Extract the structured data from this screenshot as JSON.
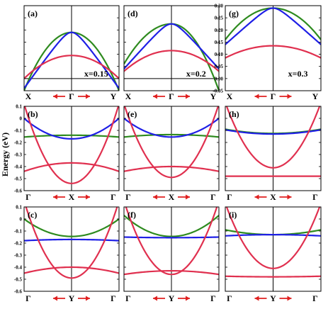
{
  "colors": {
    "band_green": "#2e8b1f",
    "band_blue": "#1f1fe6",
    "band_red": "#e0304f",
    "arrow_red": "#e02020",
    "arrow_pink": "#f07a7a",
    "axis": "#000000"
  },
  "ylabel": "Energy (eV)",
  "chart_data": [
    {
      "type": "line",
      "label": "(a)",
      "annotation": "x=0.15",
      "kpoints": [
        "X",
        "Γ",
        "Y"
      ],
      "ylim": [
        -0.05,
        0.3
      ],
      "ytick_labels": [],
      "has_zero_line": true,
      "x": [
        -1,
        0,
        1
      ],
      "series": [
        {
          "color": "green",
          "values": [
            -0.05,
            0.19,
            -0.05
          ],
          "shape": "parabola"
        },
        {
          "color": "blue",
          "values": [
            -0.04,
            0.19,
            -0.04
          ],
          "shape": "cone"
        },
        {
          "color": "red",
          "values": [
            0.0,
            0.095,
            0.0
          ],
          "shape": "parabola"
        }
      ]
    },
    {
      "type": "line",
      "label": "(d)",
      "annotation": "x=0.2",
      "kpoints": [
        "X",
        "Γ",
        "Y"
      ],
      "ylim": [
        -0.05,
        0.3
      ],
      "ytick_labels": [],
      "has_zero_line": true,
      "x": [
        -1,
        0,
        1
      ],
      "series": [
        {
          "color": "green",
          "values": [
            0.06,
            0.225,
            -0.05
          ],
          "shape": "parabola"
        },
        {
          "color": "blue",
          "values": [
            0.04,
            0.225,
            0.04
          ],
          "shape": "cone"
        },
        {
          "color": "red",
          "values": [
            0.03,
            0.115,
            0.03
          ],
          "shape": "parabola"
        }
      ]
    },
    {
      "type": "line",
      "label": "(g)",
      "annotation": "x=0.3",
      "kpoints": [
        "X",
        "Γ",
        "Y"
      ],
      "ylim": [
        -0.05,
        0.3
      ],
      "ytick_labels": [
        "0.30",
        "0.25",
        "0.20",
        "0.15",
        "0.10",
        "0.05",
        "0.00",
        "-0.05"
      ],
      "has_zero_line": false,
      "x": [
        -1,
        0,
        1
      ],
      "series": [
        {
          "color": "green",
          "values": [
            0.16,
            0.29,
            0.16
          ],
          "shape": "parabola"
        },
        {
          "color": "blue",
          "values": [
            0.14,
            0.29,
            0.14
          ],
          "shape": "cone"
        },
        {
          "color": "red",
          "values": [
            0.085,
            0.135,
            0.085
          ],
          "shape": "parabola"
        }
      ]
    },
    {
      "type": "line",
      "label": "(b)",
      "kpoints": [
        "Γ",
        "X",
        "Γ"
      ],
      "ylim": [
        -0.6,
        0.1
      ],
      "ytick_labels": [
        "0.1",
        "0",
        "-0.1",
        "-0.2",
        "-0.3",
        "-0.4",
        "-0.5",
        "-0.6"
      ],
      "has_zero_line": false,
      "x": [
        -1,
        0,
        1
      ],
      "series": [
        {
          "color": "green",
          "values": [
            -0.155,
            -0.14,
            -0.155
          ],
          "shape": "parabola"
        },
        {
          "color": "blue",
          "values": [
            0.0,
            -0.17,
            0.0
          ],
          "shape": "parabola"
        },
        {
          "color": "red",
          "values": [
            0.12,
            -0.54,
            0.12
          ],
          "shape": "parabola"
        },
        {
          "color": "red",
          "values": [
            -0.44,
            -0.37,
            -0.44
          ],
          "shape": "parabola"
        }
      ]
    },
    {
      "type": "line",
      "label": "(e)",
      "kpoints": [
        "Γ",
        "X",
        "Γ"
      ],
      "ylim": [
        -0.6,
        0.1
      ],
      "ytick_labels": [],
      "has_zero_line": false,
      "x": [
        -1,
        0,
        1
      ],
      "series": [
        {
          "color": "green",
          "values": [
            -0.155,
            -0.135,
            -0.155
          ],
          "shape": "parabola"
        },
        {
          "color": "blue",
          "values": [
            0.0,
            -0.155,
            0.0
          ],
          "shape": "parabola"
        },
        {
          "color": "red",
          "values": [
            0.12,
            -0.49,
            0.12
          ],
          "shape": "parabola"
        },
        {
          "color": "red",
          "values": [
            -0.44,
            -0.4,
            -0.44
          ],
          "shape": "parabola"
        }
      ]
    },
    {
      "type": "line",
      "label": "(h)",
      "kpoints": [
        "Γ",
        "X",
        "Γ"
      ],
      "ylim": [
        -0.6,
        0.1
      ],
      "ytick_labels": [],
      "has_zero_line": false,
      "x": [
        -1,
        0,
        1
      ],
      "series": [
        {
          "color": "green",
          "values": [
            -0.09,
            -0.125,
            -0.09
          ],
          "shape": "parabola"
        },
        {
          "color": "blue",
          "values": [
            -0.095,
            -0.13,
            -0.095
          ],
          "shape": "parabola"
        },
        {
          "color": "red",
          "values": [
            0.13,
            -0.41,
            0.13
          ],
          "shape": "parabola"
        },
        {
          "color": "red",
          "values": [
            -0.48,
            -0.48,
            -0.48
          ],
          "shape": "parabola"
        }
      ]
    },
    {
      "type": "line",
      "label": "(c)",
      "kpoints": [
        "Γ",
        "Y",
        "Γ"
      ],
      "ylim": [
        -0.6,
        0.1
      ],
      "ytick_labels": [
        "0.1",
        "0",
        "-0.1",
        "-0.2",
        "-0.3",
        "-0.4",
        "-0.5",
        "-0.6"
      ],
      "has_zero_line": false,
      "x": [
        -1,
        0,
        1
      ],
      "series": [
        {
          "color": "green",
          "values": [
            0.0,
            -0.145,
            0.0
          ],
          "shape": "parabola"
        },
        {
          "color": "blue",
          "values": [
            -0.18,
            -0.17,
            -0.18
          ],
          "shape": "parabola"
        },
        {
          "color": "red",
          "values": [
            0.15,
            -0.49,
            0.15
          ],
          "shape": "parabola"
        },
        {
          "color": "red",
          "values": [
            -0.45,
            -0.4,
            -0.45
          ],
          "shape": "parabola"
        }
      ]
    },
    {
      "type": "line",
      "label": "(f)",
      "kpoints": [
        "Γ",
        "Y",
        "Γ"
      ],
      "ylim": [
        -0.6,
        0.1
      ],
      "ytick_labels": [],
      "has_zero_line": false,
      "x": [
        -1,
        0,
        1
      ],
      "series": [
        {
          "color": "green",
          "values": [
            0.03,
            -0.145,
            0.03
          ],
          "shape": "parabola"
        },
        {
          "color": "blue",
          "values": [
            -0.15,
            -0.155,
            -0.15
          ],
          "shape": "parabola"
        },
        {
          "color": "red",
          "values": [
            0.15,
            -0.46,
            0.15
          ],
          "shape": "parabola"
        },
        {
          "color": "red",
          "values": [
            -0.46,
            -0.43,
            -0.46
          ],
          "shape": "parabola"
        }
      ]
    },
    {
      "type": "line",
      "label": "(i)",
      "kpoints": [
        "Γ",
        "Y",
        "Γ"
      ],
      "ylim": [
        -0.6,
        0.1
      ],
      "ytick_labels": [],
      "has_zero_line": false,
      "x": [
        -1,
        0,
        1
      ],
      "series": [
        {
          "color": "green",
          "values": [
            -0.09,
            -0.13,
            -0.09
          ],
          "shape": "parabola"
        },
        {
          "color": "blue",
          "values": [
            -0.14,
            -0.13,
            -0.14
          ],
          "shape": "parabola"
        },
        {
          "color": "red",
          "values": [
            0.13,
            -0.41,
            0.13
          ],
          "shape": "parabola"
        },
        {
          "color": "red",
          "values": [
            -0.475,
            -0.48,
            -0.475
          ],
          "shape": "parabola"
        }
      ]
    }
  ]
}
